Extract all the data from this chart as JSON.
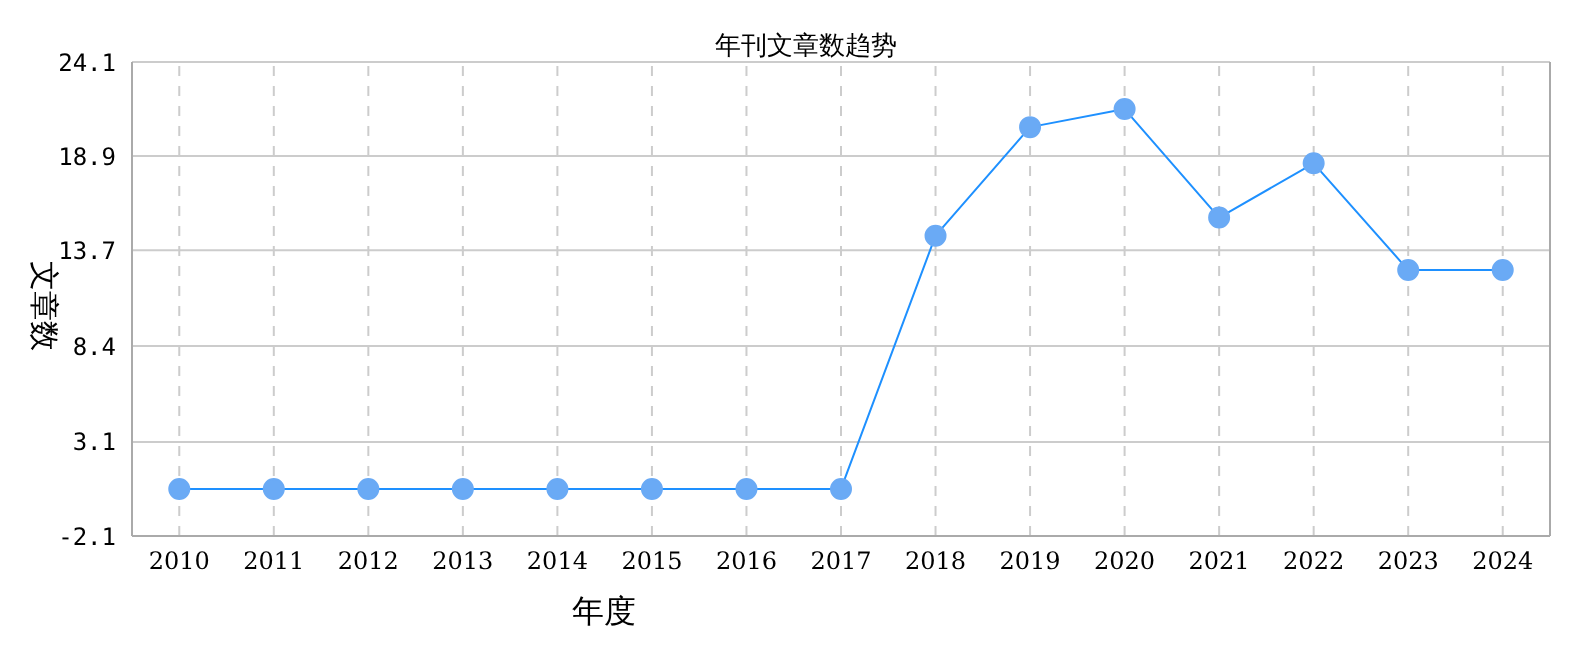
{
  "chart_data": {
    "type": "line",
    "title": "年刊文章数趋势",
    "xlabel": "年度",
    "ylabel": "文章数",
    "categories": [
      "2010",
      "2011",
      "2012",
      "2013",
      "2014",
      "2015",
      "2016",
      "2017",
      "2018",
      "2019",
      "2020",
      "2021",
      "2022",
      "2023",
      "2024"
    ],
    "series": [
      {
        "color": "#1e90ff",
        "values": [
          0.5,
          0.5,
          0.5,
          0.5,
          0.5,
          0.5,
          0.5,
          0.5,
          14.5,
          20.5,
          21.5,
          15.5,
          18.5,
          12.6,
          12.6
        ]
      }
    ],
    "ylim": [
      -2.1,
      24.1
    ],
    "yticks": [
      -2.1,
      3.1,
      8.4,
      13.7,
      18.9,
      24.1
    ],
    "grid": true,
    "marker": "circle",
    "line_style": "solid"
  }
}
